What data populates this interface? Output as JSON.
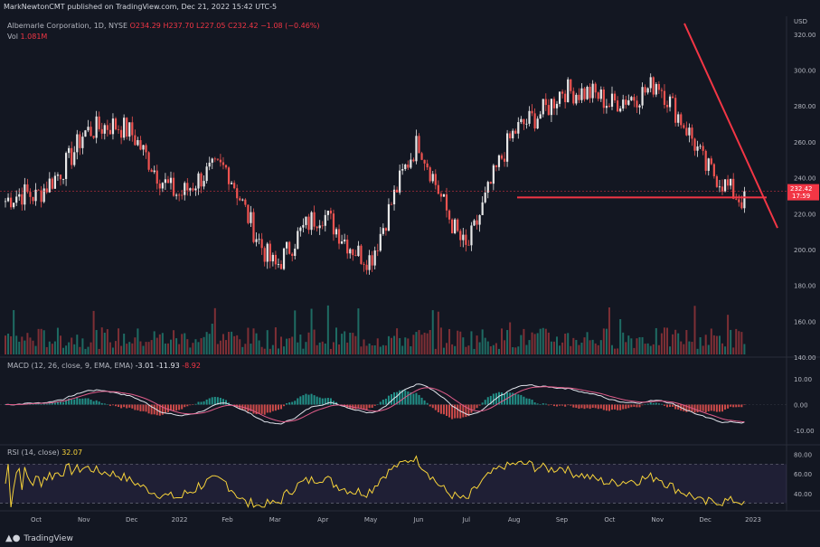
{
  "header": {
    "published": "MarkNewtonCMT published on TradingView.com, Dec 21, 2022 15:42 UTC-5"
  },
  "legend": {
    "symbol": "Albemarle Corporation, 1D, NYSE",
    "ohlc": "O234.29 H237.70 L227.05 C232.42 −1.08 (−0.46%)",
    "vol_label": "Vol",
    "vol_value": "1.081M",
    "macd_label": "MACD (12, 26, close, 9, EMA, EMA)",
    "macd_v1": "-3.01",
    "macd_v2": "-11.93",
    "macd_v3": "-8.92",
    "rsi_label": "RSI (14, close)",
    "rsi_value": "32.07"
  },
  "price_axis": {
    "currency": "USD",
    "ticks": [
      "320.00",
      "300.00",
      "280.00",
      "260.00",
      "240.00",
      "220.00",
      "200.00",
      "180.00",
      "160.00",
      "140.00"
    ],
    "last_price": "232.42",
    "countdown": "17:59"
  },
  "macd_axis": {
    "ticks": [
      "10.00",
      "0.00",
      "-10.00"
    ]
  },
  "rsi_axis": {
    "ticks": [
      "80.00",
      "60.00",
      "40.00"
    ]
  },
  "time_axis": [
    "Oct",
    "Nov",
    "Dec",
    "2022",
    "Feb",
    "Mar",
    "Apr",
    "May",
    "Jun",
    "Jul",
    "Aug",
    "Sep",
    "Oct",
    "Nov",
    "Dec",
    "2023"
  ],
  "branding": {
    "logo": "TradingView"
  },
  "colors": {
    "up": "#26a69a",
    "down": "#ef5350",
    "candle_up": "#e8e8e8",
    "candle_down": "#ef5350",
    "trendline": "#f23645",
    "macd": "#e0e3eb",
    "signal": "#e05c8a",
    "rsi": "#f7d33a"
  },
  "chart_data": {
    "type": "candlestick",
    "title": "Albemarle Corporation, 1D, NYSE",
    "ylim": [
      140,
      330
    ],
    "key_closes": [
      {
        "x": "Oct",
        "y": 225
      },
      {
        "x": "Nov",
        "y": 270
      },
      {
        "x": "Dec",
        "y": 260
      },
      {
        "x": "2022",
        "y": 235
      },
      {
        "x": "Feb",
        "y": 240
      },
      {
        "x": "Mar",
        "y": 195
      },
      {
        "x": "Apr",
        "y": 215
      },
      {
        "x": "May",
        "y": 200
      },
      {
        "x": "Jun",
        "y": 255
      },
      {
        "x": "Jul",
        "y": 205
      },
      {
        "x": "Aug",
        "y": 260
      },
      {
        "x": "Sep",
        "y": 295
      },
      {
        "x": "Oct",
        "y": 275
      },
      {
        "x": "Nov",
        "y": 300
      },
      {
        "x": "Dec",
        "y": 240
      },
      {
        "x": "Dec 21",
        "y": 232.42
      }
    ],
    "support_level": 229,
    "downtrend": {
      "from": {
        "x": "Nov",
        "y": 326
      },
      "to": {
        "x": "2023",
        "y": 212
      }
    },
    "last_close": 232.42,
    "macd": {
      "macd": -3.01,
      "signal": -11.93,
      "histogram": -8.92,
      "ylim": [
        -15,
        15
      ]
    },
    "rsi": {
      "value": 32.07,
      "ylim": [
        25,
        85
      ],
      "bands": [
        30,
        70
      ]
    }
  }
}
